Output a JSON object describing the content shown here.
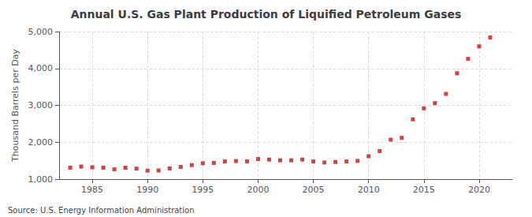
{
  "chart_data": {
    "type": "scatter",
    "title": "Annual U.S. Gas Plant Production of Liquified Petroleum Gases",
    "ylabel": "Thousand Barrels per Day",
    "annotations": [
      "Source: U.S. Energy Information Administration"
    ],
    "x": [
      1983,
      1984,
      1985,
      1986,
      1987,
      1988,
      1989,
      1990,
      1991,
      1992,
      1993,
      1994,
      1995,
      1996,
      1997,
      1998,
      1999,
      2000,
      2001,
      2002,
      2003,
      2004,
      2005,
      2006,
      2007,
      2008,
      2009,
      2010,
      2011,
      2012,
      2013,
      2014,
      2015,
      2016,
      2017,
      2018,
      2019,
      2020,
      2021
    ],
    "values": [
      1310,
      1340,
      1320,
      1310,
      1265,
      1310,
      1285,
      1230,
      1235,
      1290,
      1330,
      1380,
      1430,
      1440,
      1480,
      1490,
      1480,
      1545,
      1530,
      1510,
      1510,
      1530,
      1480,
      1450,
      1465,
      1480,
      1495,
      1620,
      1760,
      2070,
      2120,
      2620,
      2920,
      3060,
      3310,
      3870,
      4260,
      4600,
      4840
    ],
    "color": "#cc1111",
    "marker": "square",
    "xlim": [
      1982,
      2023
    ],
    "xticks": [
      1985,
      1990,
      1995,
      2000,
      2005,
      2010,
      2015,
      2020
    ],
    "ylim": [
      1000,
      5000
    ],
    "yticks": [
      {
        "value": 1000,
        "label": "1,000"
      },
      {
        "value": 2000,
        "label": "2,000"
      },
      {
        "value": 3000,
        "label": "3,000"
      },
      {
        "value": 4000,
        "label": "4,000"
      },
      {
        "value": 5000,
        "label": "5,000"
      }
    ],
    "grid": true
  }
}
